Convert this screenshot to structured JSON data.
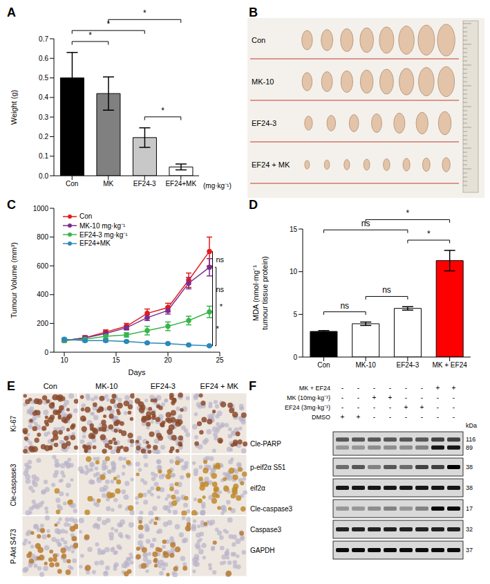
{
  "chart_data": [
    {
      "panel_label": "A",
      "type": "bar",
      "categories": [
        "Con",
        "MK",
        "EF24-3",
        "EF24+MK"
      ],
      "values": [
        0.5,
        0.42,
        0.195,
        0.045
      ],
      "errors": [
        0.13,
        0.085,
        0.05,
        0.015
      ],
      "colors": [
        "#000000",
        "#808080",
        "#c8c8c8",
        "#ffffff"
      ],
      "y_label": "Weight (g)",
      "x_label": "(mg·kg⁻¹)",
      "ylim": [
        0,
        0.7
      ],
      "yticks": [
        {
          "value": 0,
          "label": "0.0"
        },
        0.1,
        0.2,
        0.3,
        0.4,
        0.5,
        0.6,
        0.7
      ],
      "annotations": [
        {
          "between": [
            "Con",
            "MK"
          ],
          "label": "*"
        },
        {
          "between": [
            "Con",
            "EF24-3"
          ],
          "label": "*"
        },
        {
          "between": [
            "MK",
            "EF24+MK"
          ],
          "label": "*"
        },
        {
          "between": [
            "EF24-3",
            "EF24+MK"
          ],
          "label": "*"
        }
      ]
    },
    {
      "panel_label": "C",
      "type": "line",
      "x": [
        10,
        12,
        14,
        16,
        18,
        20,
        22,
        24
      ],
      "xlim": [
        9,
        25
      ],
      "xticks": [
        10,
        15,
        20,
        25
      ],
      "ylim": [
        0,
        1000
      ],
      "yticks": [
        0,
        200,
        400,
        600,
        800,
        1000
      ],
      "x_label": "Days",
      "y_label": "Tumour Volume (mm³)",
      "legend": "top-left",
      "marker": "circle",
      "series": [
        {
          "name": "Con",
          "color": "#e41a1c",
          "values": [
            80,
            100,
            140,
            180,
            270,
            310,
            500,
            700
          ],
          "errors": [
            10,
            15,
            15,
            20,
            30,
            30,
            50,
            100
          ]
        },
        {
          "name": "MK-10 mg·kg⁻¹",
          "color": "#7b2d8e",
          "values": [
            80,
            100,
            130,
            170,
            240,
            290,
            480,
            590
          ],
          "errors": [
            10,
            10,
            15,
            15,
            20,
            25,
            40,
            60
          ]
        },
        {
          "name": "EF24-3 mg·kg⁻¹",
          "color": "#39b54a",
          "values": [
            80,
            90,
            110,
            120,
            150,
            180,
            220,
            280
          ],
          "errors": [
            8,
            10,
            15,
            15,
            30,
            30,
            30,
            40
          ]
        },
        {
          "name": "EF24+MK",
          "color": "#2a8ab8",
          "values": [
            90,
            80,
            80,
            75,
            65,
            60,
            50,
            45
          ],
          "errors": [
            8,
            8,
            8,
            6,
            5,
            5,
            5,
            5
          ]
        }
      ],
      "annotations": [
        {
          "between": [
            "Con",
            "MK-10 mg·kg⁻¹"
          ],
          "label": "ns"
        },
        {
          "between": [
            "MK-10 mg·kg⁻¹",
            "EF24-3 mg·kg⁻¹"
          ],
          "label": "ns"
        },
        {
          "between": [
            "MK-10 mg·kg⁻¹",
            "EF24+MK"
          ],
          "label": "*"
        },
        {
          "between": [
            "EF24-3 mg·kg⁻¹",
            "EF24+MK"
          ],
          "label": "*"
        }
      ]
    },
    {
      "panel_label": "D",
      "type": "bar",
      "categories": [
        "Con",
        "MK-10",
        "EF24-3",
        "MK + EF24"
      ],
      "values": [
        3.0,
        3.9,
        5.7,
        11.3
      ],
      "errors": [
        0.1,
        0.2,
        0.2,
        1.2
      ],
      "colors": [
        "#000000",
        "#ffffff",
        "#ffffff",
        "#ff0000"
      ],
      "y_label": [
        "MDA (nmol·mg⁻¹",
        "tumour tissue protein)"
      ],
      "ylim": [
        0,
        15
      ],
      "yticks": [
        0,
        5,
        10,
        15
      ],
      "annotations": [
        {
          "between": [
            "Con",
            "MK-10"
          ],
          "label": "ns"
        },
        {
          "between": [
            "MK-10",
            "EF24-3"
          ],
          "label": "ns"
        },
        {
          "between": [
            "Con",
            "EF24-3"
          ],
          "label": "ns"
        },
        {
          "between": [
            "EF24-3",
            "MK + EF24"
          ],
          "label": "*"
        },
        {
          "between": [
            "MK-10",
            "MK + EF24"
          ],
          "label": "*"
        }
      ]
    }
  ],
  "panels": {
    "B": {
      "panel_label": "B",
      "rows": [
        {
          "label": "Con",
          "tumours": 8
        },
        {
          "label": "MK-10",
          "tumours": 8
        },
        {
          "label": "EF24-3",
          "tumours": 7
        },
        {
          "label": "EF24 + MK",
          "tumours": 8
        }
      ]
    },
    "E": {
      "panel_label": "E",
      "columns": [
        "Con",
        "MK-10",
        "EF24-3",
        "EF24 + MK"
      ],
      "rows": [
        {
          "label": "Ki-67",
          "staining": [
            0.9,
            0.85,
            0.8,
            0.3
          ]
        },
        {
          "label": "Cle-caspase3",
          "staining": [
            0.05,
            0.2,
            0.2,
            0.5
          ]
        },
        {
          "label": "P-Akt S473",
          "staining": [
            0.4,
            0.05,
            0.35,
            0.05
          ]
        }
      ]
    },
    "F": {
      "panel_label": "F",
      "kda_label": "kDa",
      "treatments": [
        {
          "label": "MK + EF24",
          "lanes": [
            "-",
            "-",
            "-",
            "-",
            "-",
            "-",
            "+",
            "+"
          ]
        },
        {
          "label": "MK (10mg·kg⁻¹)",
          "lanes": [
            "-",
            "-",
            "+",
            "+",
            "-",
            "-",
            "-",
            "-"
          ]
        },
        {
          "label": "EF24 (3mg·kg⁻¹)",
          "lanes": [
            "-",
            "-",
            "-",
            "-",
            "+",
            "+",
            "-",
            "-"
          ]
        },
        {
          "label": "DMSO",
          "lanes": [
            "+",
            "+",
            "-",
            "-",
            "-",
            "-",
            "-",
            "-"
          ]
        }
      ],
      "rows": [
        {
          "label": "Cle-PARP",
          "bands": [
            {
              "kda": 116,
              "intensity": [
                0.6,
                0.6,
                0.6,
                0.6,
                0.6,
                0.6,
                0.7,
                0.7
              ]
            },
            {
              "kda": 89,
              "intensity": [
                0.3,
                0.3,
                0.35,
                0.35,
                0.35,
                0.4,
                0.9,
                0.9
              ]
            }
          ]
        },
        {
          "label": "p-eif2α S51",
          "bands": [
            {
              "kda": 38,
              "intensity": [
                0.5,
                0.6,
                0.4,
                0.6,
                0.5,
                0.7,
                0.7,
                1
              ]
            }
          ]
        },
        {
          "label": "eif2α",
          "bands": [
            {
              "kda": 38,
              "intensity": [
                0.9,
                0.9,
                0.9,
                0.9,
                0.9,
                0.9,
                0.9,
                0.9
              ]
            }
          ]
        },
        {
          "label": "Cle-caspase3",
          "bands": [
            {
              "kda": 17,
              "intensity": [
                0.3,
                0.3,
                0.35,
                0.4,
                0.3,
                0.4,
                0.95,
                0.95
              ]
            }
          ]
        },
        {
          "label": "Caspase3",
          "bands": [
            {
              "kda": 32,
              "intensity": [
                0.85,
                0.85,
                0.85,
                0.85,
                0.85,
                0.85,
                0.85,
                0.85
              ]
            }
          ]
        },
        {
          "label": "GAPDH",
          "bands": [
            {
              "kda": 37,
              "intensity": [
                0.95,
                0.95,
                0.95,
                0.95,
                0.95,
                0.95,
                0.95,
                0.95
              ]
            }
          ]
        }
      ]
    }
  }
}
